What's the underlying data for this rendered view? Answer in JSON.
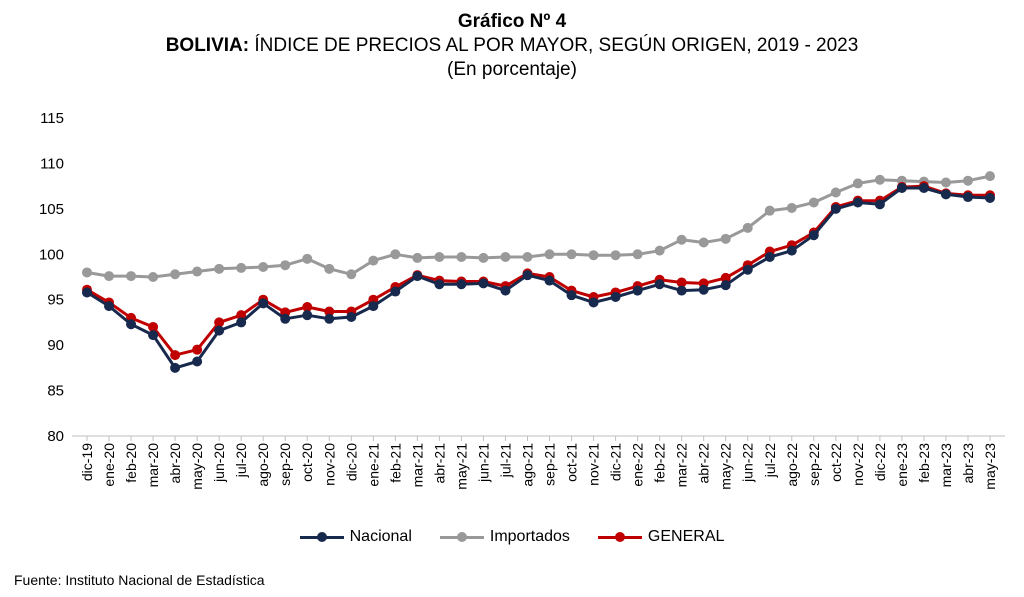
{
  "header": {
    "title": "Gráfico Nº 4",
    "subtitle_bold": "BOLIVIA:",
    "subtitle_rest": " ÍNDICE DE PRECIOS AL POR MAYOR, SEGÚN ORIGEN, 2019 - 2023",
    "unit": "(En porcentaje)"
  },
  "footer": {
    "source": "Fuente: Instituto Nacional de Estadística"
  },
  "chart_data": {
    "type": "line",
    "title": "Gráfico Nº 4 — BOLIVIA: ÍNDICE DE PRECIOS AL POR MAYOR, SEGÚN ORIGEN, 2019 - 2023",
    "ylim": [
      80,
      115
    ],
    "yticks": [
      "80",
      "85",
      "90",
      "95",
      "100",
      "105",
      "110",
      "115"
    ],
    "grid": false,
    "legend": "bottom",
    "categories": [
      "dic-19",
      "ene-20",
      "feb-20",
      "mar-20",
      "abr-20",
      "may-20",
      "jun-20",
      "jul-20",
      "ago-20",
      "sep-20",
      "oct-20",
      "nov-20",
      "dic-20",
      "ene-21",
      "feb-21",
      "mar-21",
      "abr-21",
      "may-21",
      "jun-21",
      "jul-21",
      "ago-21",
      "sep-21",
      "oct-21",
      "nov-21",
      "dic-21",
      "ene-22",
      "feb-22",
      "mar-22",
      "abr-22",
      "may-22",
      "jun-22",
      "jul-22",
      "ago-22",
      "sep-22",
      "oct-22",
      "nov-22",
      "dic-22",
      "ene-23",
      "feb-23",
      "mar-23",
      "abr-23",
      "may-23"
    ],
    "series": [
      {
        "name": "Nacional",
        "color": "#17294d",
        "values": [
          95.8,
          94.3,
          92.3,
          91.1,
          87.5,
          88.2,
          91.6,
          92.5,
          94.6,
          92.9,
          93.3,
          92.9,
          93.1,
          94.3,
          95.9,
          97.6,
          96.7,
          96.7,
          96.8,
          96.0,
          97.7,
          97.1,
          95.5,
          94.7,
          95.3,
          96.0,
          96.7,
          96.0,
          96.1,
          96.6,
          98.3,
          99.7,
          100.4,
          102.1,
          105.0,
          105.7,
          105.5,
          107.3,
          107.3,
          106.6,
          106.3,
          106.2
        ]
      },
      {
        "name": "Importados",
        "color": "#999999",
        "values": [
          98.0,
          97.6,
          97.6,
          97.5,
          97.8,
          98.1,
          98.4,
          98.5,
          98.6,
          98.8,
          99.5,
          98.4,
          97.8,
          99.3,
          100.0,
          99.6,
          99.7,
          99.7,
          99.6,
          99.7,
          99.7,
          100.0,
          100.0,
          99.9,
          99.9,
          100.0,
          100.4,
          101.6,
          101.3,
          101.7,
          102.9,
          104.8,
          105.1,
          105.7,
          106.8,
          107.8,
          108.2,
          108.1,
          108.0,
          107.9,
          108.1,
          108.6
        ]
      },
      {
        "name": "GENERAL",
        "color": "#c00000",
        "values": [
          96.1,
          94.7,
          93.0,
          92.0,
          88.9,
          89.5,
          92.5,
          93.3,
          95.0,
          93.6,
          94.2,
          93.7,
          93.7,
          95.0,
          96.4,
          97.7,
          97.1,
          97.0,
          97.0,
          96.5,
          97.9,
          97.5,
          96.0,
          95.3,
          95.8,
          96.5,
          97.2,
          96.9,
          96.8,
          97.4,
          98.8,
          100.3,
          101.0,
          102.4,
          105.2,
          105.9,
          105.9,
          107.4,
          107.5,
          106.7,
          106.5,
          106.5
        ]
      }
    ]
  }
}
